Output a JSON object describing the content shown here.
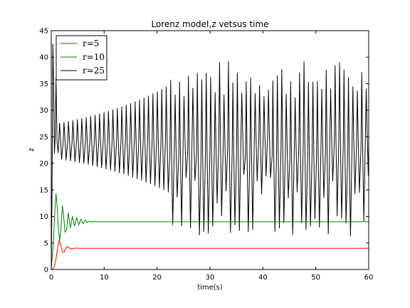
{
  "chart_data": {
    "type": "line",
    "title": "Lorenz model,z vetsus time",
    "xlabel": "time(s)",
    "ylabel": "z",
    "xlim": [
      0,
      60
    ],
    "ylim": [
      0,
      45
    ],
    "xticks": [
      "0",
      "10",
      "20",
      "30",
      "40",
      "50",
      "60"
    ],
    "yticks": [
      "0",
      "5",
      "10",
      "15",
      "20",
      "25",
      "30",
      "35",
      "40",
      "45"
    ],
    "legend_position": "top-left",
    "grid": false,
    "series": [
      {
        "name": "r=5",
        "color": "#ff0000",
        "x": [
          0,
          0.3,
          0.6,
          0.9,
          1.2,
          1.5,
          1.8,
          2.1,
          2.4,
          2.7,
          3.0,
          3.5,
          4.0,
          4.5,
          5.0,
          6.0,
          8.0,
          60
        ],
        "y": [
          0,
          0.1,
          0.6,
          2.0,
          4.0,
          5.5,
          4.6,
          3.3,
          3.2,
          3.9,
          4.3,
          4.0,
          3.85,
          4.05,
          4.0,
          4.0,
          4.0,
          4.0
        ]
      },
      {
        "name": "r=10",
        "color": "#008000",
        "x": [
          0,
          0.4,
          0.7,
          0.9,
          1.1,
          1.3,
          1.6,
          1.9,
          2.1,
          2.3,
          2.6,
          2.9,
          3.2,
          3.6,
          4.0,
          4.4,
          4.8,
          5.2,
          5.6,
          6.0,
          6.4,
          6.8,
          7.2,
          7.6,
          8.0,
          9.0,
          10.0,
          60
        ],
        "y": [
          0,
          5.0,
          11.5,
          14.3,
          12.0,
          8.0,
          5.5,
          8.5,
          12.0,
          10.5,
          7.0,
          7.5,
          10.7,
          7.8,
          10.0,
          8.2,
          9.8,
          8.4,
          9.5,
          8.6,
          9.3,
          8.8,
          9.15,
          8.9,
          9.05,
          9.0,
          9.0,
          9.0
        ]
      },
      {
        "name": "r=25",
        "color": "#000000",
        "x": [
          0,
          0.15,
          0.3,
          0.45,
          0.6,
          0.75,
          0.9,
          1.1,
          1.3
        ],
        "y": [
          0,
          15.0,
          42.5,
          35.0,
          22.0,
          25.0,
          36.0,
          24.0,
          22.0
        ],
        "oscillation": {
          "start": 1.3,
          "end": 60,
          "period": 0.84,
          "center": 24.0,
          "amplitude_start": 3.4,
          "amplitude_growth_rate": 0.053,
          "irregular_after": 22,
          "peak_range": [
            28,
            39.5
          ],
          "trough_range": [
            6.2,
            18
          ]
        }
      }
    ]
  }
}
